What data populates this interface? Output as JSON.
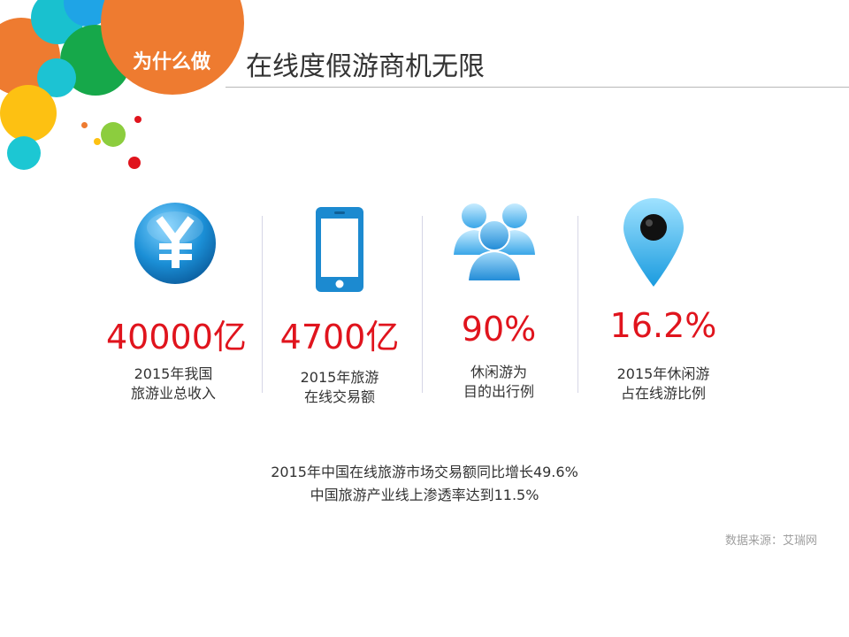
{
  "header": {
    "section_tag": "为什么做",
    "title": "在线度假游商机无限"
  },
  "colors": {
    "accent_orange": "#ee7b30",
    "value_red": "#e0141d",
    "icon_blue": "#1c8ad0"
  },
  "stats": [
    {
      "icon": "yen-coin-icon",
      "value": "40000亿",
      "label_line1": "2015年我国",
      "label_line2": "旅游业总收入"
    },
    {
      "icon": "smartphone-icon",
      "value": "4700亿",
      "label_line1": "2015年旅游",
      "label_line2": "在线交易额"
    },
    {
      "icon": "people-group-icon",
      "value": "90%",
      "label_line1": "休闲游为",
      "label_line2": "目的出行例"
    },
    {
      "icon": "map-pin-icon",
      "value": "16.2%",
      "label_line1": "2015年休闲游",
      "label_line2": "占在线游比例"
    }
  ],
  "summary": {
    "line1": "2015年中国在线旅游市场交易额同比增长49.6%",
    "line2": "中国旅游产业线上渗透率达到11.5%"
  },
  "source": "数据来源：艾瑞网"
}
